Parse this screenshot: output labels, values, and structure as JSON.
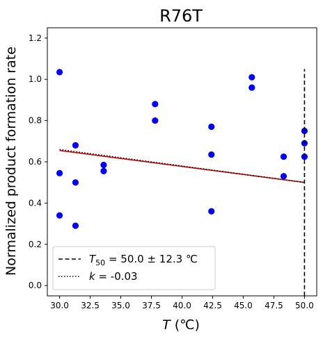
{
  "chart_data": {
    "type": "scatter",
    "title": "R76T",
    "xlabel": "T (℃)",
    "xlabel_var": "T",
    "xlabel_unit": " (℃)",
    "ylabel": "Normalized product formation rate",
    "xlim": [
      29.0,
      51.0
    ],
    "ylim": [
      -0.05,
      1.25
    ],
    "x_ticks": [
      30.0,
      32.5,
      35.0,
      37.5,
      40.0,
      42.5,
      45.0,
      47.5,
      50.0
    ],
    "x_tick_labels": [
      "30.0",
      "32.5",
      "35.0",
      "37.5",
      "40.0",
      "42.5",
      "45.0",
      "47.5",
      "50.0"
    ],
    "y_ticks": [
      0.0,
      0.2,
      0.4,
      0.6,
      0.8,
      1.0,
      1.2
    ],
    "y_tick_labels": [
      "0.0",
      "0.2",
      "0.4",
      "0.6",
      "0.8",
      "1.0",
      "1.2"
    ],
    "grid": false,
    "legend_position": "lower-left",
    "points": {
      "color": "#0000ff",
      "x": [
        30.0,
        30.0,
        30.0,
        31.3,
        31.3,
        31.3,
        33.6,
        33.6,
        37.8,
        37.8,
        42.4,
        42.4,
        42.4,
        45.7,
        45.7,
        48.3,
        48.3,
        50.0,
        50.0,
        50.0
      ],
      "y": [
        1.035,
        0.545,
        0.34,
        0.68,
        0.5,
        0.29,
        0.585,
        0.555,
        0.88,
        0.8,
        0.77,
        0.635,
        0.36,
        1.01,
        0.96,
        0.625,
        0.53,
        0.75,
        0.69,
        0.625
      ]
    },
    "fit_line": {
      "color": "#cc0000",
      "x": [
        30.0,
        50.0
      ],
      "y": [
        0.655,
        0.5
      ]
    },
    "k_line": {
      "color": "#000000",
      "style": "dotted",
      "x": [
        30.0,
        50.0
      ],
      "y": [
        0.66,
        0.5
      ]
    },
    "t50_line": {
      "color": "#000000",
      "style": "dashed",
      "x": 50.0,
      "y_range": [
        -0.05,
        1.05
      ]
    },
    "legend": [
      {
        "style": "dashed",
        "var": "T",
        "sub": "50",
        "rest": " = 50.0 ± 12.3 ℃"
      },
      {
        "style": "dotted",
        "var": "k",
        "sub": "",
        "rest": " = -0.03"
      }
    ]
  }
}
